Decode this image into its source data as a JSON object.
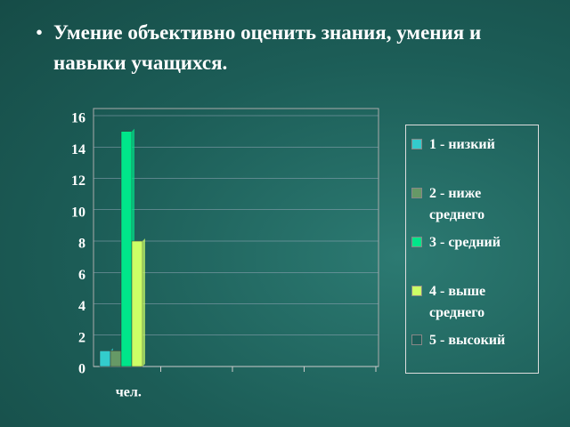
{
  "chart_data": {
    "type": "bar",
    "title": "Умение объективно оценить знания, умения и навыки учащихся.",
    "categories": [
      "чел.",
      null,
      null,
      null
    ],
    "series": [
      {
        "name": "1 - низкий",
        "color": "#33cccc",
        "values": [
          1,
          null,
          null,
          null
        ]
      },
      {
        "name": "2 - ниже среднего",
        "color": "#669966",
        "values": [
          1,
          null,
          null,
          null
        ]
      },
      {
        "name": "3 - средний",
        "color": "#00e68a",
        "values": [
          15,
          null,
          null,
          null
        ]
      },
      {
        "name": "4 - выше среднего",
        "color": "#ccff66",
        "values": [
          8,
          null,
          null,
          null
        ]
      },
      {
        "name": "5 - высокий",
        "color": "#1e5f5a",
        "values": [
          0,
          null,
          null,
          null
        ]
      }
    ],
    "ylim": [
      0,
      16
    ],
    "yticks": [
      0,
      2,
      4,
      6,
      8,
      10,
      12,
      14,
      16
    ],
    "grid": true,
    "legend": "right"
  }
}
